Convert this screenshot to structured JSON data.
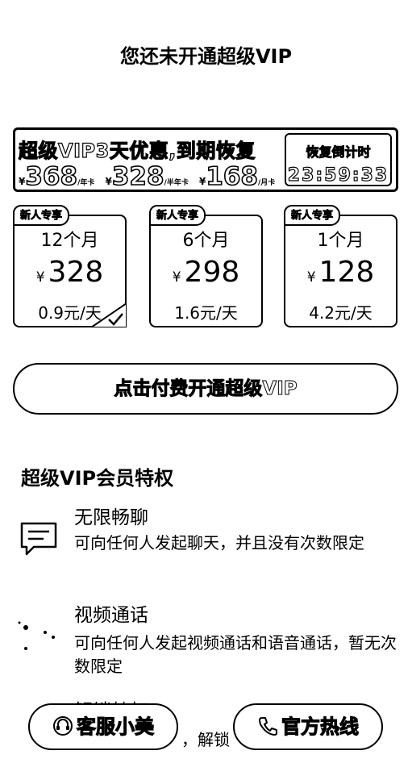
{
  "page": {
    "title": "您还未开通超级VIP"
  },
  "promo": {
    "title": "超级VIP3天优惠,到期恢复",
    "prices": [
      {
        "symbol": "¥",
        "value": "368",
        "unit": "/年卡"
      },
      {
        "symbol": "¥",
        "value": "328",
        "unit": "/半年卡"
      },
      {
        "symbol": "¥",
        "value": "168",
        "unit": "/月卡"
      }
    ],
    "countdown": {
      "label": "恢复倒计时",
      "time": "23:59:33"
    }
  },
  "plans": [
    {
      "badge": "新人专享",
      "duration": "12个月",
      "currency": "¥",
      "price": "328",
      "per_day": "0.9元/天",
      "selected": true
    },
    {
      "badge": "新人专享",
      "duration": "6个月",
      "currency": "¥",
      "price": "298",
      "per_day": "1.6元/天",
      "selected": false
    },
    {
      "badge": "新人专享",
      "duration": "1个月",
      "currency": "¥",
      "price": "128",
      "per_day": "4.2元/天",
      "selected": false
    }
  ],
  "pay_button": {
    "label": "点击付费开通超级VIP"
  },
  "privileges": {
    "title": "超级VIP会员特权",
    "items": [
      {
        "icon": "chat-icon",
        "title": "无限畅聊",
        "desc": "可向任何人发起聊天，并且没有次数限定"
      },
      {
        "icon": "video-call-icon",
        "title": "视频通话",
        "desc": "可向任何人发起视频通话和语音通话，暂无次数限定"
      },
      {
        "icon": "unlock-icon",
        "title": "解锁特权",
        "desc": "，解锁"
      }
    ]
  },
  "footer": {
    "customer_service": {
      "icon": "headset-icon",
      "label": "客服小美"
    },
    "hotline": {
      "icon": "phone-icon",
      "label": "官方热线"
    }
  }
}
